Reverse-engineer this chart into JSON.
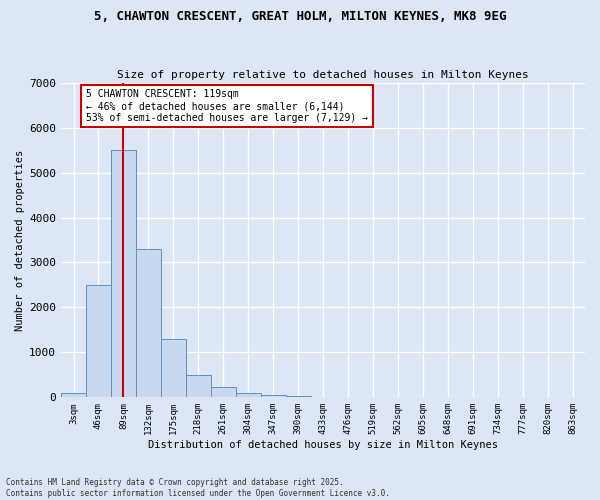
{
  "title_line1": "5, CHAWTON CRESCENT, GREAT HOLM, MILTON KEYNES, MK8 9EG",
  "title_line2": "Size of property relative to detached houses in Milton Keynes",
  "xlabel": "Distribution of detached houses by size in Milton Keynes",
  "ylabel": "Number of detached properties",
  "bar_color": "#c8d8ee",
  "bar_edge_color": "#6090c0",
  "background_color": "#dce6f5",
  "grid_color": "#ffffff",
  "categories": [
    "3sqm",
    "46sqm",
    "89sqm",
    "132sqm",
    "175sqm",
    "218sqm",
    "261sqm",
    "304sqm",
    "347sqm",
    "390sqm",
    "433sqm",
    "476sqm",
    "519sqm",
    "562sqm",
    "605sqm",
    "648sqm",
    "691sqm",
    "734sqm",
    "777sqm",
    "820sqm",
    "863sqm"
  ],
  "values": [
    100,
    2500,
    5500,
    3300,
    1300,
    500,
    220,
    90,
    60,
    30,
    5,
    2,
    1,
    0,
    0,
    0,
    0,
    0,
    0,
    0,
    0
  ],
  "property_size_bin": 2.0,
  "property_label": "5 CHAWTON CRESCENT: 119sqm",
  "annotation_line2": "← 46% of detached houses are smaller (6,144)",
  "annotation_line3": "53% of semi-detached houses are larger (7,129) →",
  "vline_color": "#cc0000",
  "annotation_box_color": "#ffffff",
  "annotation_box_edge": "#cc0000",
  "ylim": [
    0,
    7000
  ],
  "yticks": [
    0,
    1000,
    2000,
    3000,
    4000,
    5000,
    6000,
    7000
  ],
  "footer_line1": "Contains HM Land Registry data © Crown copyright and database right 2025.",
  "footer_line2": "Contains public sector information licensed under the Open Government Licence v3.0."
}
